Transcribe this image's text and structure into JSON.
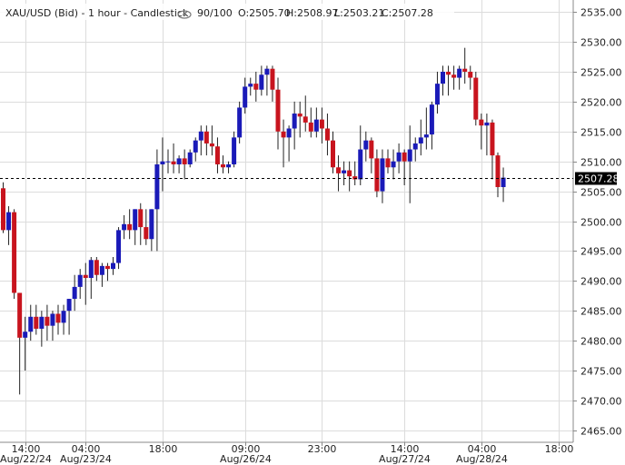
{
  "header": {
    "symbol": "XAU/USD (Bid) - 1 hour - Candlestick",
    "count": "90/100",
    "open": "O:2505.70",
    "high": "H:2508.97",
    "low": "L:2503.21",
    "close": "C:2507.28",
    "eye_icon": "eye-icon"
  },
  "colors": {
    "up": "#1a1ab8",
    "down": "#c8141e",
    "wick": "#222222",
    "grid": "#dcdcdc",
    "price_line": "#000000",
    "price_label_bg": "#000000",
    "price_label_fg": "#ffffff"
  },
  "chart_data": {
    "type": "candlestick",
    "ylim": [
      2463,
      2537
    ],
    "y_ticks": [
      2465,
      2470,
      2475,
      2480,
      2485,
      2490,
      2495,
      2500,
      2505,
      2510,
      2515,
      2520,
      2525,
      2530,
      2535
    ],
    "y_tick_labels": [
      "2465.00",
      "2470.00",
      "2475.00",
      "2480.00",
      "2485.00",
      "2490.00",
      "2495.00",
      "2500.00",
      "2505.00",
      "2510.00",
      "2515.00",
      "2520.00",
      "2525.00",
      "2530.00",
      "2535.00"
    ],
    "current_price": 2507.28,
    "current_price_label": "2507.28",
    "x_ticks": [
      {
        "i": 4,
        "time": "14:00",
        "date": "Aug/22/24"
      },
      {
        "i": 15,
        "time": "04:00",
        "date": "Aug/23/24"
      },
      {
        "i": 29,
        "time": "18:00",
        "date": ""
      },
      {
        "i": 44,
        "time": "09:00",
        "date": "Aug/26/24"
      },
      {
        "i": 58,
        "time": "23:00",
        "date": ""
      },
      {
        "i": 73,
        "time": "14:00",
        "date": "Aug/27/24"
      },
      {
        "i": 87,
        "time": "04:00",
        "date": "Aug/28/24"
      },
      {
        "i": 101,
        "time": "18:00",
        "date": ""
      }
    ],
    "candles": [
      [
        2505.5,
        2506.5,
        2498,
        2498.5
      ],
      [
        2498.5,
        2502.5,
        2496,
        2501.5
      ],
      [
        2501.5,
        2502,
        2487,
        2488
      ],
      [
        2488,
        2488,
        2471,
        2480.5
      ],
      [
        2480.5,
        2484,
        2475,
        2481.5
      ],
      [
        2481.5,
        2486,
        2480,
        2484
      ],
      [
        2484,
        2486,
        2481,
        2482
      ],
      [
        2482,
        2485,
        2479,
        2484
      ],
      [
        2484,
        2486,
        2480,
        2482.5
      ],
      [
        2482.5,
        2485,
        2480,
        2484.5
      ],
      [
        2484.5,
        2486,
        2481,
        2483
      ],
      [
        2483,
        2486,
        2481,
        2485
      ],
      [
        2485,
        2487,
        2481,
        2487
      ],
      [
        2487,
        2491,
        2485,
        2489
      ],
      [
        2489,
        2492,
        2487,
        2491
      ],
      [
        2491,
        2493,
        2486,
        2490.5
      ],
      [
        2490.5,
        2494,
        2487,
        2493.5
      ],
      [
        2493.5,
        2494,
        2490,
        2491
      ],
      [
        2491,
        2493,
        2489,
        2492.5
      ],
      [
        2492.5,
        2493,
        2490,
        2492
      ],
      [
        2492,
        2494,
        2491,
        2493
      ],
      [
        2493,
        2499,
        2492,
        2498.5
      ],
      [
        2498.5,
        2501,
        2497,
        2499.5
      ],
      [
        2499.5,
        2502,
        2497,
        2498.5
      ],
      [
        2498.5,
        2502,
        2496,
        2502
      ],
      [
        2502,
        2503,
        2496,
        2499
      ],
      [
        2499,
        2502,
        2496,
        2497
      ],
      [
        2497,
        2502,
        2495,
        2502
      ],
      [
        2502,
        2512,
        2495,
        2509.5
      ],
      [
        2509.5,
        2514,
        2505,
        2510
      ],
      [
        2510,
        2512,
        2508,
        2510
      ],
      [
        2510,
        2513,
        2508,
        2509.5
      ],
      [
        2509.5,
        2511,
        2508,
        2510.5
      ],
      [
        2510.5,
        2512,
        2507,
        2509.5
      ],
      [
        2509.5,
        2512,
        2509,
        2511.5
      ],
      [
        2511.5,
        2514,
        2510,
        2513.5
      ],
      [
        2513.5,
        2516,
        2511,
        2515
      ],
      [
        2515,
        2516,
        2511,
        2513
      ],
      [
        2513,
        2516,
        2511,
        2512.5
      ],
      [
        2512.5,
        2514,
        2508,
        2509.5
      ],
      [
        2509.5,
        2511,
        2508,
        2509
      ],
      [
        2509,
        2510,
        2508,
        2509.5
      ],
      [
        2509.5,
        2515,
        2509,
        2514
      ],
      [
        2514,
        2520,
        2513,
        2519
      ],
      [
        2519,
        2524,
        2518,
        2522.5
      ],
      [
        2522.5,
        2524,
        2521,
        2523
      ],
      [
        2523,
        2525,
        2520,
        2522
      ],
      [
        2522,
        2526,
        2521,
        2524.5
      ],
      [
        2524.5,
        2526,
        2521,
        2525.5
      ],
      [
        2525.5,
        2526,
        2520,
        2522
      ],
      [
        2522,
        2524,
        2512,
        2515
      ],
      [
        2515,
        2517,
        2509,
        2514
      ],
      [
        2514,
        2516,
        2510,
        2515.5
      ],
      [
        2515.5,
        2520,
        2512,
        2518
      ],
      [
        2518,
        2520,
        2514,
        2517.5
      ],
      [
        2517.5,
        2521,
        2515,
        2516.5
      ],
      [
        2516.5,
        2519,
        2514,
        2515
      ],
      [
        2515,
        2519,
        2514,
        2517
      ],
      [
        2517,
        2519,
        2513,
        2515.5
      ],
      [
        2515.5,
        2518,
        2511,
        2513.5
      ],
      [
        2513.5,
        2515,
        2508,
        2509
      ],
      [
        2509,
        2511,
        2505,
        2508
      ],
      [
        2508,
        2510,
        2506,
        2508.5
      ],
      [
        2508.5,
        2510,
        2505,
        2507.5
      ],
      [
        2507.5,
        2510,
        2506,
        2507
      ],
      [
        2507,
        2516,
        2506,
        2512
      ],
      [
        2512,
        2515,
        2510,
        2513.5
      ],
      [
        2513.5,
        2514,
        2508,
        2510.5
      ],
      [
        2510.5,
        2512,
        2504,
        2505
      ],
      [
        2505,
        2512,
        2503,
        2510.5
      ],
      [
        2510.5,
        2512,
        2508,
        2509
      ],
      [
        2509,
        2512,
        2507,
        2510
      ],
      [
        2510,
        2513,
        2508,
        2511.5
      ],
      [
        2511.5,
        2512,
        2506,
        2510
      ],
      [
        2510,
        2516,
        2503,
        2512
      ],
      [
        2512,
        2514,
        2510,
        2513
      ],
      [
        2513,
        2517,
        2511,
        2514
      ],
      [
        2514,
        2519,
        2512,
        2514.5
      ],
      [
        2514.5,
        2520,
        2512,
        2519.5
      ],
      [
        2519.5,
        2525,
        2518,
        2523
      ],
      [
        2523,
        2526,
        2521,
        2525
      ],
      [
        2525,
        2526,
        2521,
        2524.5
      ],
      [
        2524.5,
        2526,
        2522,
        2524
      ],
      [
        2524,
        2526,
        2522,
        2525.5
      ],
      [
        2525.5,
        2529,
        2523,
        2525
      ],
      [
        2525,
        2526,
        2522,
        2524
      ],
      [
        2524,
        2525,
        2516,
        2517
      ],
      [
        2517,
        2518,
        2512,
        2516
      ],
      [
        2516,
        2518,
        2511,
        2516.5
      ],
      [
        2516.5,
        2517,
        2507,
        2511
      ],
      [
        2511,
        2511.5,
        2504,
        2505.7
      ],
      [
        2505.7,
        2508.97,
        2503.21,
        2507.28
      ]
    ]
  }
}
